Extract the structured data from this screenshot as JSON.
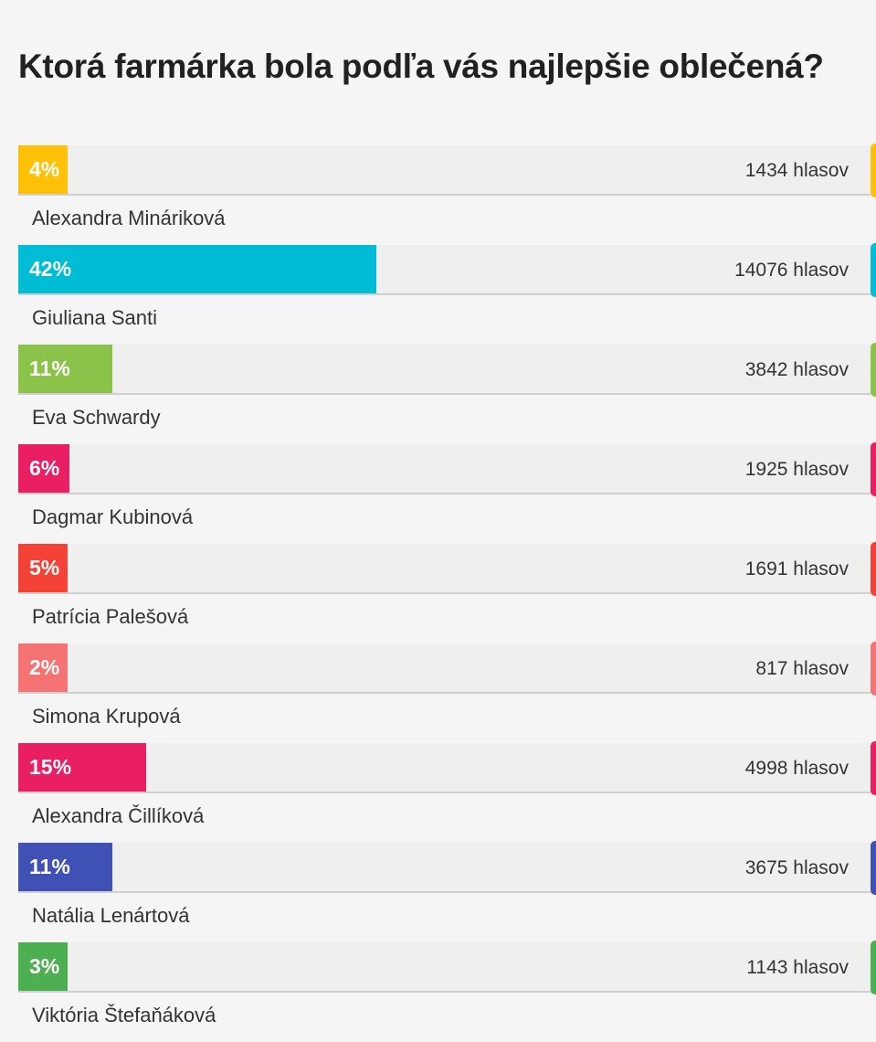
{
  "poll": {
    "question": "Ktorá farmárka bola podľa vás najlepšie oblečená?",
    "options": [
      {
        "name": "Alexandra Mináriková",
        "percent_label": "4%",
        "percent": 4,
        "votes_label": "1434 hlasov",
        "color": "#ffc107"
      },
      {
        "name": "Giuliana Santi",
        "percent_label": "42%",
        "percent": 42,
        "votes_label": "14076 hlasov",
        "color": "#00bcd4"
      },
      {
        "name": "Eva Schwardy",
        "percent_label": "11%",
        "percent": 11,
        "votes_label": "3842 hlasov",
        "color": "#8bc34a"
      },
      {
        "name": "Dagmar Kubinová",
        "percent_label": "6%",
        "percent": 6,
        "votes_label": "1925 hlasov",
        "color": "#e91e63"
      },
      {
        "name": "Patrícia Palešová",
        "percent_label": "5%",
        "percent": 5,
        "votes_label": "1691 hlasov",
        "color": "#f44336"
      },
      {
        "name": "Simona Krupová",
        "percent_label": "2%",
        "percent": 2,
        "votes_label": "817 hlasov",
        "color": "#f57373"
      },
      {
        "name": "Alexandra Čillíková",
        "percent_label": "15%",
        "percent": 15,
        "votes_label": "4998 hlasov",
        "color": "#e91e63"
      },
      {
        "name": "Natália Lenártová",
        "percent_label": "11%",
        "percent": 11,
        "votes_label": "3675 hlasov",
        "color": "#3f51b5"
      },
      {
        "name": "Viktória Štefaňáková",
        "percent_label": "3%",
        "percent": 3,
        "votes_label": "1143 hlasov",
        "color": "#4caf50"
      }
    ]
  }
}
